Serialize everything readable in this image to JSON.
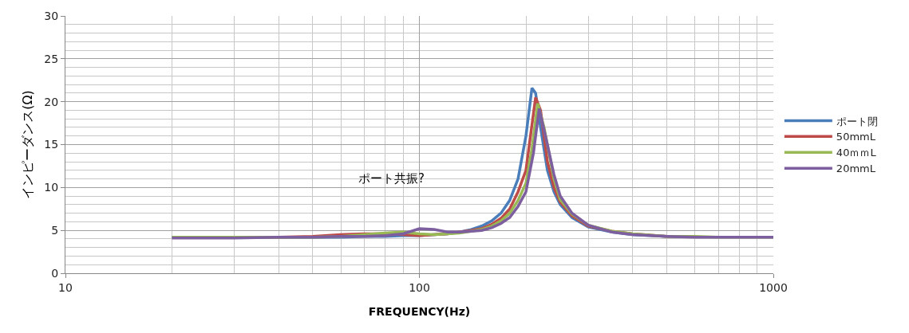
{
  "chart_data": {
    "type": "line",
    "xlabel": "FREQUENCY(Hz)",
    "ylabel": "インピーダンス(Ω)",
    "log": "x",
    "xlim": [
      10,
      1000
    ],
    "xticks": [
      10,
      100,
      1000
    ],
    "ylim": [
      0,
      30
    ],
    "yticks": [
      0,
      5,
      10,
      15,
      20,
      25,
      30
    ],
    "grid": true,
    "legend": "right",
    "marker": "none",
    "line_style": "solid",
    "annotations": [
      "ポート共振?"
    ],
    "series": [
      {
        "name": "ポート閉",
        "color": "#4a7ebb",
        "x": [
          20,
          25,
          30,
          40,
          50,
          60,
          70,
          80,
          90,
          100,
          110,
          120,
          130,
          140,
          150,
          160,
          170,
          180,
          190,
          200,
          208,
          213,
          220,
          230,
          240,
          250,
          270,
          300,
          350,
          400,
          500,
          600
        ],
        "values": [
          4.2,
          4.2,
          4.2,
          4.2,
          4.2,
          4.2,
          4.3,
          4.3,
          4.4,
          4.4,
          4.5,
          4.6,
          4.8,
          5.1,
          5.5,
          6.1,
          7.0,
          8.5,
          11.0,
          16.0,
          21.6,
          21.0,
          17.0,
          12.0,
          9.5,
          8.0,
          6.5,
          5.4,
          4.8,
          4.5,
          4.3,
          4.3
        ]
      },
      {
        "name": "50mmL",
        "color": "#be4b48",
        "x": [
          30,
          40,
          50,
          60,
          70,
          80,
          90,
          100,
          110,
          120,
          130,
          140,
          150,
          160,
          170,
          180,
          190,
          200,
          206,
          213,
          220,
          230,
          240,
          250,
          270,
          300,
          350,
          400,
          500,
          600
        ],
        "values": [
          4.2,
          4.2,
          4.3,
          4.5,
          4.6,
          4.6,
          4.5,
          4.4,
          4.5,
          4.6,
          4.8,
          5.0,
          5.2,
          5.7,
          6.4,
          7.5,
          9.5,
          12.0,
          16.0,
          20.5,
          19.0,
          13.0,
          10.0,
          8.3,
          6.7,
          5.5,
          4.9,
          4.6,
          4.3,
          4.3
        ]
      },
      {
        "name": "40ｍｍL",
        "color": "#98b954",
        "x": [
          20,
          25,
          30,
          40,
          50,
          60,
          70,
          80,
          90,
          100,
          110,
          120,
          130,
          140,
          150,
          160,
          170,
          180,
          190,
          200,
          208,
          216,
          225,
          240,
          250,
          270,
          300,
          350,
          400,
          500,
          600,
          700,
          800,
          1000
        ],
        "values": [
          4.2,
          4.2,
          4.2,
          4.2,
          4.2,
          4.3,
          4.5,
          4.7,
          4.8,
          4.6,
          4.5,
          4.6,
          4.7,
          4.9,
          5.1,
          5.5,
          6.1,
          7.0,
          8.5,
          10.5,
          14.5,
          19.8,
          17.0,
          11.0,
          8.6,
          6.9,
          5.6,
          4.9,
          4.6,
          4.3,
          4.3,
          4.2,
          4.2,
          4.2
        ]
      },
      {
        "name": "20mmL",
        "color": "#7d5fa0",
        "x": [
          20,
          25,
          30,
          40,
          50,
          60,
          70,
          80,
          90,
          100,
          110,
          120,
          130,
          140,
          150,
          160,
          170,
          180,
          190,
          200,
          210,
          218,
          230,
          240,
          250,
          270,
          300,
          350,
          400,
          500,
          600,
          700,
          800,
          1000
        ],
        "values": [
          4.1,
          4.1,
          4.1,
          4.2,
          4.2,
          4.3,
          4.3,
          4.4,
          4.6,
          5.2,
          5.1,
          4.8,
          4.8,
          4.9,
          5.0,
          5.3,
          5.8,
          6.5,
          7.8,
          9.5,
          14.0,
          19.2,
          15.0,
          11.5,
          9.0,
          7.0,
          5.6,
          4.8,
          4.5,
          4.3,
          4.2,
          4.2,
          4.2,
          4.2
        ]
      }
    ]
  }
}
